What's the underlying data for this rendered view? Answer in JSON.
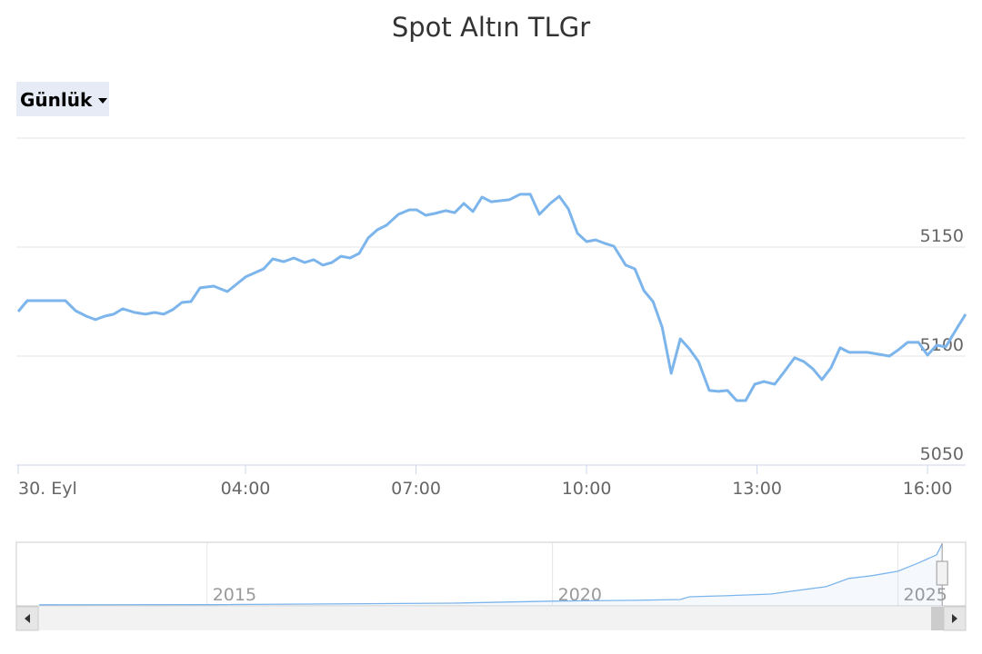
{
  "range_selector": "Günlük",
  "chart_data": [
    {
      "type": "line",
      "title": "Spot Altın TLGr",
      "color": "#7cb5ec",
      "grid": true,
      "x": [
        0.0,
        0.16,
        0.32,
        0.83,
        1.01,
        1.2,
        1.36,
        1.52,
        1.68,
        1.84,
        2.05,
        2.24,
        2.4,
        2.56,
        2.72,
        2.88,
        3.04,
        3.2,
        3.44,
        3.68,
        3.84,
        4.0,
        4.32,
        4.48,
        4.67,
        4.85,
        5.04,
        5.2,
        5.36,
        5.52,
        5.68,
        5.84,
        6.0,
        6.16,
        6.32,
        6.48,
        6.69,
        6.88,
        7.01,
        7.17,
        7.33,
        7.52,
        7.68,
        7.84,
        8.0,
        8.16,
        8.32,
        8.64,
        8.83,
        9.01,
        9.17,
        9.36,
        9.52,
        9.68,
        9.84,
        10.0,
        10.16,
        10.32,
        10.48,
        10.69,
        10.85,
        11.01,
        11.17,
        11.33,
        11.49,
        11.65,
        11.81,
        11.97,
        12.16,
        12.32,
        12.48,
        12.64,
        12.8,
        12.96,
        13.12,
        13.31,
        13.47,
        13.66,
        13.82,
        13.98,
        14.14,
        14.3,
        14.46,
        14.62,
        14.94,
        15.33,
        15.49,
        15.65,
        15.84,
        16.0,
        16.16,
        16.32,
        16.51,
        16.67
      ],
      "values": [
        5120.4,
        5125.4,
        5125.4,
        5125.4,
        5120.8,
        5118.3,
        5116.7,
        5118.3,
        5119.2,
        5121.7,
        5120.0,
        5119.2,
        5120.0,
        5119.2,
        5121.3,
        5124.6,
        5125.0,
        5131.3,
        5132.1,
        5129.6,
        5132.9,
        5136.3,
        5140.0,
        5144.6,
        5143.3,
        5145.0,
        5142.9,
        5144.2,
        5141.7,
        5142.9,
        5145.8,
        5145.0,
        5147.1,
        5154.2,
        5157.9,
        5160.0,
        5165.0,
        5167.1,
        5167.1,
        5164.6,
        5165.4,
        5166.7,
        5165.8,
        5170.0,
        5166.3,
        5172.9,
        5170.8,
        5171.7,
        5174.2,
        5174.2,
        5165.0,
        5170.0,
        5173.3,
        5167.5,
        5156.3,
        5152.5,
        5153.3,
        5151.7,
        5150.4,
        5141.7,
        5140.0,
        5130.0,
        5125.0,
        5113.3,
        5092.1,
        5107.9,
        5103.3,
        5097.5,
        5084.2,
        5083.8,
        5084.2,
        5079.6,
        5079.6,
        5087.1,
        5088.3,
        5087.1,
        5092.5,
        5099.2,
        5097.5,
        5094.2,
        5089.2,
        5094.6,
        5103.8,
        5101.7,
        5101.7,
        5100.0,
        5102.9,
        5106.3,
        5106.3,
        5100.4,
        5105.0,
        5104.2,
        5112.5,
        5119.2
      ],
      "xlim": [
        0,
        16.67
      ],
      "ylim": [
        5050,
        5200
      ],
      "xticks": [
        {
          "value": 0,
          "label": "30. Eyl"
        },
        {
          "value": 4,
          "label": "04:00"
        },
        {
          "value": 7,
          "label": "07:00"
        },
        {
          "value": 10,
          "label": "10:00"
        },
        {
          "value": 13,
          "label": "13:00"
        },
        {
          "value": 16,
          "label": "16:00"
        }
      ],
      "yticks": [
        5050,
        5100,
        5150
      ]
    },
    {
      "type": "area",
      "color": "#7cb5ec",
      "x": [
        2012.57,
        2015,
        2018.57,
        2020,
        2021.2,
        2021.85,
        2021.98,
        2022.5,
        2023.16,
        2023.56,
        2023.96,
        2024.29,
        2024.62,
        2025,
        2025.3,
        2025.56,
        2025.64
      ],
      "values": [
        90,
        100,
        230,
        400,
        470,
        540,
        770,
        850,
        1000,
        1310,
        1620,
        2320,
        2550,
        2930,
        3630,
        4320,
        5250
      ],
      "xlim": [
        2012.24,
        2025.98
      ],
      "ylim": [
        0,
        5300
      ],
      "xticks": [
        2015,
        2020,
        2025
      ]
    }
  ]
}
